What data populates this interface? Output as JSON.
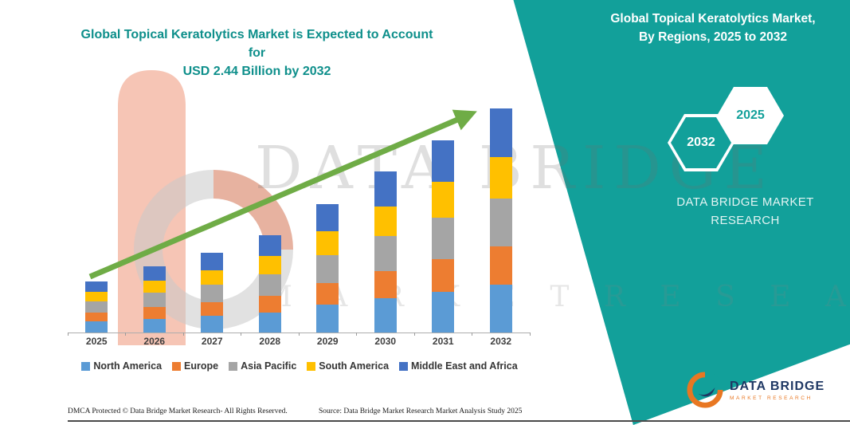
{
  "page": {
    "title_line1": "Global Topical Keratolytics Market is Expected to Account for",
    "title_line2": "USD 2.44 Billion by 2032"
  },
  "panel": {
    "color": "#12A09A",
    "heading_line1": "Global Topical Keratolytics Market,",
    "heading_line2": "By Regions, 2025 to 2032",
    "hex_back_year": "2032",
    "hex_front_year": "2025",
    "brand_line1": "DATA BRIDGE MARKET",
    "brand_line2": "RESEARCH"
  },
  "watermark": {
    "line1": "DATA BRIDGE",
    "line2": "M A R K E T   R E S E A R C H"
  },
  "footer": {
    "dmca": "DMCA Protected © Data Bridge Market Research- All Rights Reserved.",
    "source": "Source: Data Bridge Market Research Market Analysis Study 2025"
  },
  "logo": {
    "name": "DATA BRIDGE",
    "sub": "MARKET RESEARCH"
  },
  "chart_data": {
    "type": "bar",
    "stacked": true,
    "title": "Global Topical Keratolytics Market is Expected to Account for USD 2.44 Billion by 2032",
    "unit": "USD Billion",
    "categories": [
      "2025",
      "2026",
      "2027",
      "2028",
      "2029",
      "2030",
      "2031",
      "2032"
    ],
    "series": [
      {
        "name": "North America",
        "color": "#5B9BD5",
        "values": [
          0.12,
          0.15,
          0.18,
          0.22,
          0.3,
          0.37,
          0.44,
          0.52
        ]
      },
      {
        "name": "Europe",
        "color": "#ED7D31",
        "values": [
          0.1,
          0.13,
          0.15,
          0.18,
          0.24,
          0.3,
          0.36,
          0.42
        ]
      },
      {
        "name": "Asia Pacific",
        "color": "#A5A5A5",
        "values": [
          0.12,
          0.15,
          0.19,
          0.23,
          0.3,
          0.38,
          0.45,
          0.52
        ]
      },
      {
        "name": "South America",
        "color": "#FFC000",
        "values": [
          0.1,
          0.13,
          0.16,
          0.2,
          0.26,
          0.32,
          0.39,
          0.45
        ]
      },
      {
        "name": "Middle East and Africa",
        "color": "#4472C4",
        "values": [
          0.12,
          0.16,
          0.19,
          0.23,
          0.3,
          0.38,
          0.45,
          0.53
        ]
      }
    ],
    "totals": [
      0.56,
      0.72,
      0.87,
      1.06,
      1.4,
      1.75,
      2.09,
      2.44
    ],
    "ylim": [
      0,
      2.75
    ],
    "grid": false,
    "legend_position": "bottom",
    "trend_arrow": true,
    "arrow_color": "#6FAC46"
  }
}
